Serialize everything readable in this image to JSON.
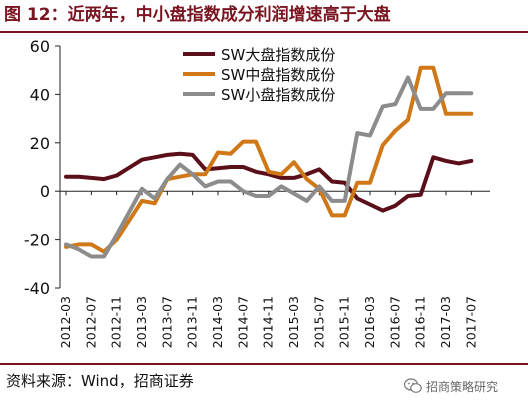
{
  "header": {
    "title": "图 12：近两年，中小盘指数成分利润增速高于大盘"
  },
  "footer": {
    "source": "资料来源：Wind，招商证券",
    "watermark": "招商策略研究"
  },
  "chart_data": {
    "type": "line",
    "title": "",
    "xlabel": "",
    "ylabel": "",
    "ylim": [
      -40,
      60
    ],
    "yticks": [
      -40,
      -20,
      0,
      20,
      40,
      60
    ],
    "grid": false,
    "legend_position": "top-center",
    "x": [
      "2012-03",
      "2012-05",
      "2012-07",
      "2012-09",
      "2012-11",
      "2013-01",
      "2013-03",
      "2013-05",
      "2013-07",
      "2013-09",
      "2013-11",
      "2014-01",
      "2014-03",
      "2014-05",
      "2014-07",
      "2014-09",
      "2014-11",
      "2015-01",
      "2015-03",
      "2015-05",
      "2015-07",
      "2015-09",
      "2015-11",
      "2016-01",
      "2016-03",
      "2016-05",
      "2016-07",
      "2016-09",
      "2016-11",
      "2017-01",
      "2017-03",
      "2017-05",
      "2017-07",
      "2017-09"
    ],
    "xtick_labels": [
      "2012-03",
      "2012-07",
      "2012-11",
      "2013-03",
      "2013-07",
      "2013-11",
      "2014-03",
      "2014-07",
      "2014-11",
      "2015-03",
      "2015-07",
      "2015-11",
      "2016-03",
      "2016-07",
      "2016-11",
      "2017-03",
      "2017-07"
    ],
    "series": [
      {
        "name": "SW大盘指数成份",
        "color": "#5a0f1a",
        "values": [
          6,
          6,
          5.5,
          5,
          6.5,
          null,
          13,
          14,
          15,
          15.5,
          15,
          9,
          9.5,
          10,
          10,
          8,
          7,
          5.5,
          5.5,
          7,
          9,
          4,
          3.5,
          -3,
          -5.5,
          -8,
          -6,
          -2,
          -1.5,
          14,
          12.5,
          11.5,
          12.5,
          null
        ]
      },
      {
        "name": "SW中盘指数成份",
        "color": "#d07818",
        "values": [
          -23,
          -22,
          -22,
          -25,
          -20,
          null,
          -4,
          -5,
          5,
          6,
          7,
          7,
          16,
          15.5,
          20.5,
          20.5,
          8,
          7,
          12,
          5,
          1,
          -10,
          -10,
          3.5,
          3.5,
          19,
          25,
          29.5,
          51,
          51,
          32,
          32,
          32,
          null
        ]
      },
      {
        "name": "SW小盘指数成份",
        "color": "#8c8c8c",
        "values": [
          -22,
          -24,
          -27,
          -27,
          -18,
          null,
          1,
          -3,
          5,
          11,
          7,
          2,
          4,
          4,
          0,
          -2,
          -2,
          2,
          -1,
          -4,
          2,
          -4,
          -4,
          24,
          23,
          35,
          36,
          47,
          34,
          34,
          40.5,
          40.5,
          40.5,
          null
        ]
      }
    ]
  }
}
